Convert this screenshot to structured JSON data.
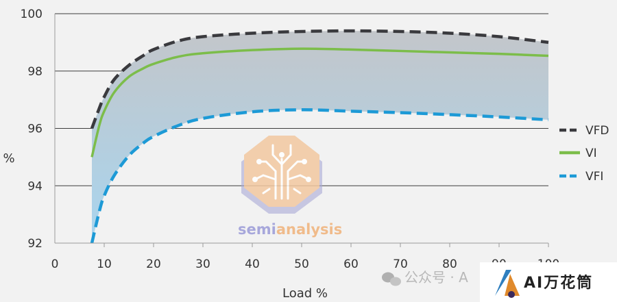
{
  "chart_data": {
    "type": "line",
    "title": "",
    "xlabel": "Load %",
    "ylabel": "%",
    "xlim": [
      0,
      100
    ],
    "ylim": [
      92,
      100
    ],
    "x_ticks": [
      0,
      10,
      20,
      30,
      40,
      50,
      60,
      70,
      80,
      90,
      100
    ],
    "y_ticks": [
      92,
      94,
      96,
      98,
      100
    ],
    "grid": "horizontal",
    "legend_position": "right",
    "shaded_band": {
      "between": [
        "VFD",
        "VFI"
      ]
    },
    "series": [
      {
        "name": "VFD",
        "color": "#3a3a3e",
        "style": "dashed",
        "x": [
          7.5,
          9,
          10,
          12,
          15,
          18,
          20,
          25,
          30,
          40,
          50,
          60,
          70,
          80,
          90,
          100
        ],
        "y": [
          96.0,
          96.7,
          97.1,
          97.7,
          98.2,
          98.55,
          98.75,
          99.05,
          99.2,
          99.32,
          99.38,
          99.4,
          99.38,
          99.32,
          99.2,
          99.0
        ]
      },
      {
        "name": "VI",
        "color": "#7cbd4a",
        "style": "solid",
        "x": [
          7.5,
          9,
          10,
          12,
          15,
          18,
          20,
          25,
          30,
          40,
          50,
          60,
          70,
          80,
          90,
          100
        ],
        "y": [
          95.0,
          96.1,
          96.6,
          97.25,
          97.8,
          98.1,
          98.25,
          98.5,
          98.62,
          98.73,
          98.78,
          98.75,
          98.7,
          98.65,
          98.6,
          98.53
        ]
      },
      {
        "name": "VFI",
        "color": "#1d9ad6",
        "style": "dashed",
        "x": [
          7.5,
          9,
          10,
          12,
          15,
          18,
          20,
          25,
          30,
          40,
          50,
          60,
          70,
          80,
          90,
          100
        ],
        "y": [
          92.0,
          93.1,
          93.65,
          94.35,
          95.05,
          95.5,
          95.72,
          96.1,
          96.35,
          96.58,
          96.65,
          96.6,
          96.55,
          96.48,
          96.4,
          96.3
        ]
      }
    ]
  },
  "watermark": {
    "text_semi": "semi",
    "text_analysis": "analysis"
  },
  "footer": {
    "wechat_text": "公众号 · A",
    "brand_text": "AI万花筒"
  },
  "colors": {
    "band_top": "#bfc5cb",
    "band_bottom": "#a9d6f0",
    "grid": "#3c3c3c",
    "axis": "#9a9a9a",
    "watermark_orange": "#f0b27a",
    "watermark_purple": "#8e8ed6"
  },
  "icons": [
    "wechat-icon",
    "brand-logo-icon"
  ]
}
